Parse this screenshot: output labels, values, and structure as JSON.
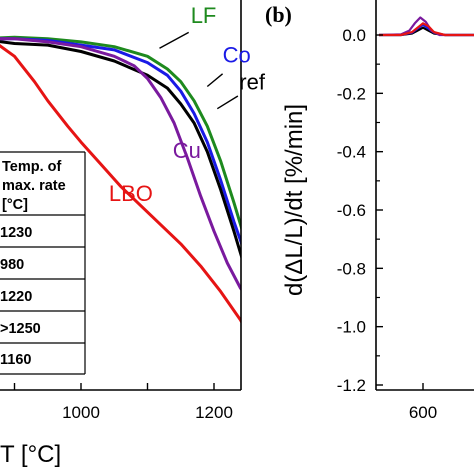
{
  "colors": {
    "LF": "#1e8a1e",
    "Co": "#1a1ae6",
    "ref": "#000000",
    "Cu": "#7a1a9e",
    "LBO": "#e61414"
  },
  "panel_b": {
    "letter": "(b)"
  },
  "table": {
    "header": [
      "Temp. of",
      "max. rate",
      "[°C]"
    ],
    "rows": [
      "1230",
      "980",
      "1220",
      ">1250",
      "1160"
    ]
  },
  "chart_data": [
    {
      "type": "line",
      "panel": "a",
      "xlabel": "T [°C]",
      "x_ticks": [
        "1000",
        "1200"
      ],
      "xlim": [
        845,
        1300
      ],
      "ylim": [
        0,
        1
      ],
      "series": [
        {
          "name": "LF",
          "color_key": "LF",
          "x": [
            845,
            900,
            950,
            1000,
            1050,
            1100,
            1130,
            1150,
            1170,
            1190,
            1210,
            1230,
            1250,
            1262
          ],
          "y": [
            0.985,
            0.99,
            0.985,
            0.975,
            0.96,
            0.93,
            0.89,
            0.85,
            0.79,
            0.71,
            0.6,
            0.47,
            0.33,
            0.23
          ]
        },
        {
          "name": "Co",
          "color_key": "Co",
          "x": [
            845,
            900,
            950,
            1000,
            1050,
            1100,
            1130,
            1150,
            1170,
            1190,
            1210,
            1230,
            1250,
            1262
          ],
          "y": [
            0.985,
            0.985,
            0.98,
            0.965,
            0.95,
            0.91,
            0.87,
            0.82,
            0.75,
            0.66,
            0.54,
            0.41,
            0.29,
            0.18
          ]
        },
        {
          "name": "ref",
          "color_key": "ref",
          "x": [
            845,
            900,
            950,
            1000,
            1050,
            1100,
            1130,
            1150,
            1170,
            1190,
            1210,
            1230,
            1250,
            1262
          ],
          "y": [
            0.985,
            0.97,
            0.965,
            0.945,
            0.915,
            0.87,
            0.83,
            0.78,
            0.72,
            0.63,
            0.51,
            0.38,
            0.24,
            0.11
          ]
        },
        {
          "name": "Cu",
          "color_key": "Cu",
          "x": [
            845,
            900,
            950,
            1000,
            1050,
            1080,
            1100,
            1120,
            1140,
            1160,
            1180,
            1200,
            1220,
            1240,
            1262
          ],
          "y": [
            0.985,
            0.985,
            0.975,
            0.96,
            0.93,
            0.9,
            0.86,
            0.8,
            0.72,
            0.61,
            0.49,
            0.38,
            0.28,
            0.2,
            0.15
          ]
        },
        {
          "name": "LBO",
          "color_key": "LBO",
          "x": [
            845,
            870,
            900,
            930,
            950,
            980,
            1000,
            1030,
            1060,
            1090,
            1120,
            1150,
            1180,
            1210,
            1240,
            1262
          ],
          "y": [
            0.985,
            0.975,
            0.93,
            0.85,
            0.79,
            0.71,
            0.66,
            0.59,
            0.52,
            0.46,
            0.4,
            0.34,
            0.27,
            0.19,
            0.1,
            0.02
          ]
        }
      ],
      "labels": [
        {
          "text": "LF",
          "series": "LF",
          "x": 1165,
          "y": 1.035
        },
        {
          "text": "Co",
          "series": "Co",
          "x": 1213,
          "y": 0.91
        },
        {
          "text": "ref",
          "series": "ref",
          "x": 1238,
          "y": 0.825
        },
        {
          "text": "Cu",
          "series": "Cu",
          "x": 1138,
          "y": 0.61
        },
        {
          "text": "LBO",
          "series": "LBO",
          "x": 1042,
          "y": 0.475
        }
      ]
    },
    {
      "type": "line",
      "panel": "b",
      "ylabel": "d(ΔL/L)/dt [%/min]",
      "y_ticks": [
        "0.0",
        "-0.2",
        "-0.4",
        "-0.6",
        "-0.8",
        "-1.0",
        "-1.2"
      ],
      "x_ticks": [
        "600"
      ],
      "ylim": [
        -1.2,
        0.1
      ],
      "xlim": [
        520,
        700
      ],
      "series": [
        {
          "color_key": "ref",
          "x": [
            520,
            560,
            580,
            590,
            600,
            610,
            620,
            640,
            700
          ],
          "y": [
            0.0,
            0.0,
            0.005,
            0.015,
            0.025,
            0.015,
            0.005,
            0.0,
            0.0
          ]
        },
        {
          "color_key": "Co",
          "x": [
            520,
            560,
            580,
            590,
            600,
            610,
            620,
            640,
            700
          ],
          "y": [
            0.0,
            0.0,
            0.008,
            0.022,
            0.035,
            0.022,
            0.008,
            0.0,
            0.0
          ]
        },
        {
          "color_key": "Cu",
          "x": [
            520,
            560,
            575,
            585,
            595,
            605,
            615,
            630,
            700
          ],
          "y": [
            0.0,
            0.002,
            0.015,
            0.04,
            0.06,
            0.045,
            0.015,
            0.0,
            0.0
          ]
        },
        {
          "color_key": "LBO",
          "x": [
            520,
            560,
            580,
            592,
            600,
            610,
            620,
            640,
            700
          ],
          "y": [
            0.0,
            0.0,
            0.01,
            0.028,
            0.04,
            0.03,
            0.01,
            0.0,
            0.0
          ]
        }
      ]
    }
  ]
}
